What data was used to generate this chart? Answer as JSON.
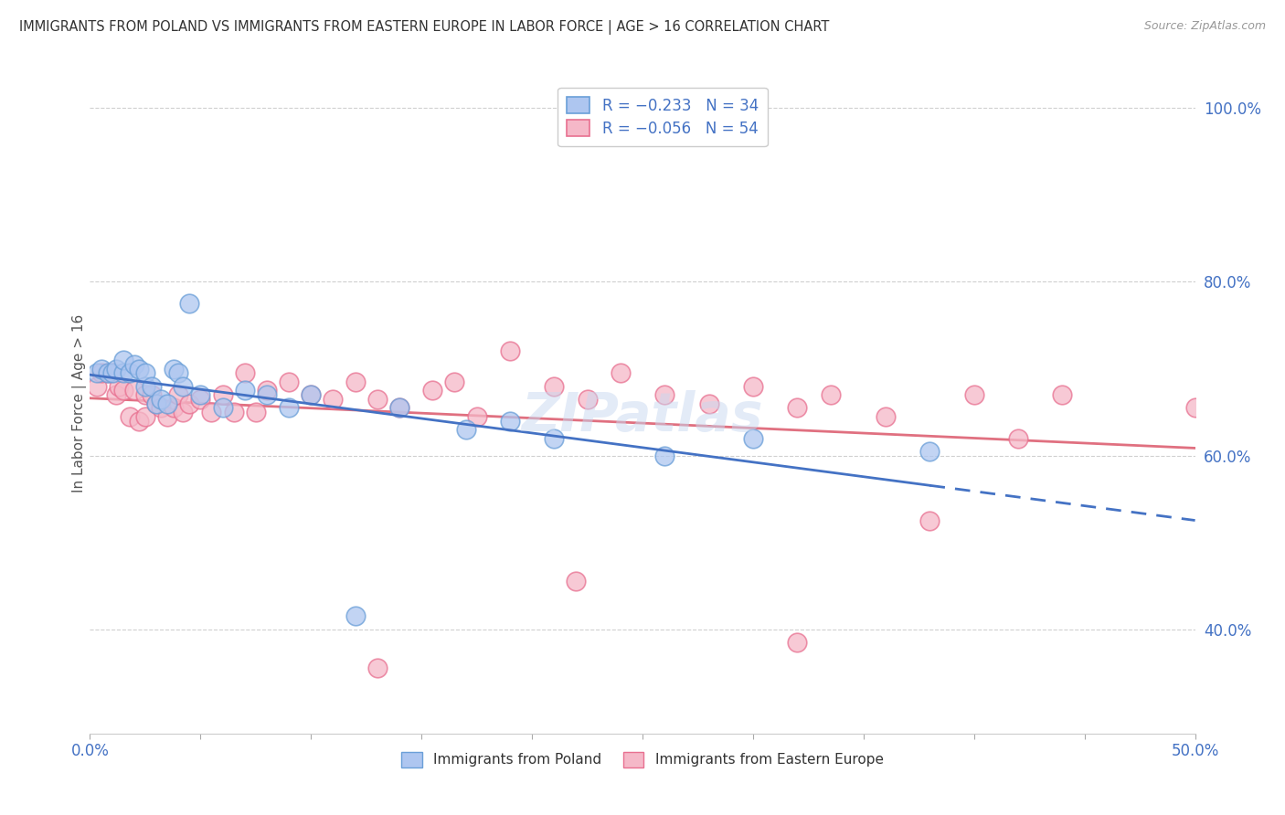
{
  "title": "IMMIGRANTS FROM POLAND VS IMMIGRANTS FROM EASTERN EUROPE IN LABOR FORCE | AGE > 16 CORRELATION CHART",
  "source": "Source: ZipAtlas.com",
  "ylabel": "In Labor Force | Age > 16",
  "legend_entry1": "R = −0.233   N = 34",
  "legend_entry2": "R = −0.056   N = 54",
  "legend_label1": "Immigrants from Poland",
  "legend_label2": "Immigrants from Eastern Europe",
  "color_poland_fill": "#aec6f0",
  "color_poland_edge": "#6a9fd8",
  "color_eastern_fill": "#f5b8c8",
  "color_eastern_edge": "#e87090",
  "trendline_poland": "#4472c4",
  "trendline_eastern": "#e07080",
  "background": "#ffffff",
  "grid_color": "#d0d0d0",
  "xlim": [
    0.0,
    0.5
  ],
  "ylim": [
    0.28,
    1.04
  ],
  "y_ticks": [
    0.4,
    0.6,
    0.8,
    1.0
  ],
  "x_ticks": [
    0.0,
    0.05,
    0.1,
    0.15,
    0.2,
    0.25,
    0.3,
    0.35,
    0.4,
    0.45,
    0.5
  ],
  "poland_x": [
    0.003,
    0.005,
    0.008,
    0.01,
    0.012,
    0.015,
    0.015,
    0.018,
    0.02,
    0.022,
    0.025,
    0.025,
    0.028,
    0.03,
    0.032,
    0.035,
    0.038,
    0.04,
    0.042,
    0.045,
    0.05,
    0.06,
    0.07,
    0.08,
    0.09,
    0.1,
    0.12,
    0.14,
    0.17,
    0.19,
    0.21,
    0.26,
    0.3,
    0.38
  ],
  "poland_y": [
    0.695,
    0.7,
    0.695,
    0.695,
    0.7,
    0.695,
    0.71,
    0.695,
    0.705,
    0.7,
    0.68,
    0.695,
    0.68,
    0.66,
    0.665,
    0.66,
    0.7,
    0.695,
    0.68,
    0.775,
    0.67,
    0.655,
    0.675,
    0.67,
    0.655,
    0.67,
    0.415,
    0.655,
    0.63,
    0.64,
    0.62,
    0.6,
    0.62,
    0.605
  ],
  "eastern_x": [
    0.003,
    0.005,
    0.008,
    0.01,
    0.012,
    0.013,
    0.015,
    0.018,
    0.02,
    0.022,
    0.025,
    0.025,
    0.028,
    0.03,
    0.032,
    0.035,
    0.038,
    0.04,
    0.042,
    0.045,
    0.05,
    0.055,
    0.06,
    0.065,
    0.07,
    0.075,
    0.08,
    0.09,
    0.1,
    0.11,
    0.12,
    0.13,
    0.14,
    0.155,
    0.165,
    0.175,
    0.19,
    0.21,
    0.225,
    0.24,
    0.26,
    0.28,
    0.3,
    0.32,
    0.335,
    0.36,
    0.38,
    0.4,
    0.42,
    0.44,
    0.13,
    0.22,
    0.32,
    0.5
  ],
  "eastern_y": [
    0.68,
    0.695,
    0.695,
    0.695,
    0.67,
    0.68,
    0.675,
    0.645,
    0.675,
    0.64,
    0.67,
    0.645,
    0.67,
    0.66,
    0.655,
    0.645,
    0.655,
    0.67,
    0.65,
    0.66,
    0.665,
    0.65,
    0.67,
    0.65,
    0.695,
    0.65,
    0.675,
    0.685,
    0.67,
    0.665,
    0.685,
    0.665,
    0.655,
    0.675,
    0.685,
    0.645,
    0.72,
    0.68,
    0.665,
    0.695,
    0.67,
    0.66,
    0.68,
    0.655,
    0.67,
    0.645,
    0.525,
    0.67,
    0.62,
    0.67,
    0.355,
    0.455,
    0.385,
    0.655
  ],
  "watermark_text": "ZIPatlas",
  "watermark_color": "#c8d8f0",
  "watermark_alpha": 0.5
}
